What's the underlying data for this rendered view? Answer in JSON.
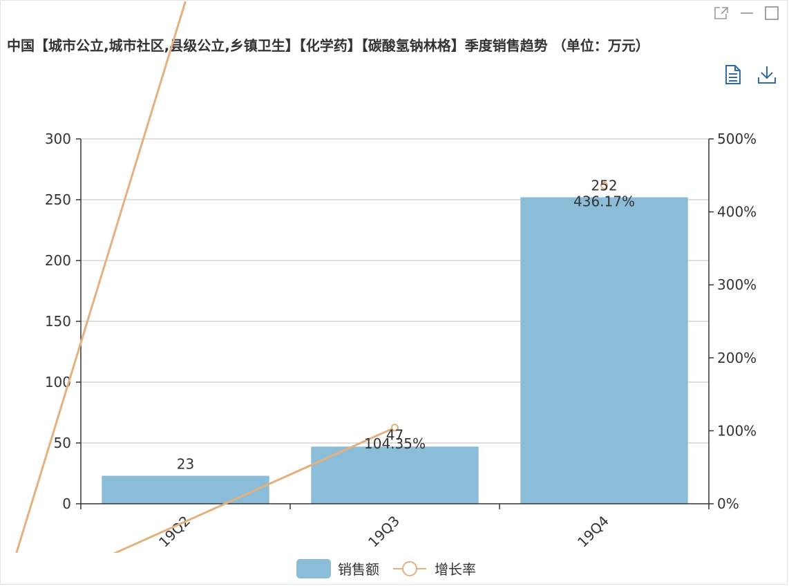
{
  "title": "中国【城市公立,城市社区,县级公立,乡镇卫生】【化学药】【碳酸氢钠林格】季度销售趋势 （单位：万元）",
  "window_controls": [
    "external-link-icon",
    "minimize-icon",
    "maximize-icon"
  ],
  "toolbox": [
    "data-view-icon",
    "download-icon"
  ],
  "colors": {
    "bar": "#8bbdd9",
    "line": "#e3b07e",
    "grid": "#cccccc",
    "axis": "#333333"
  },
  "legend": {
    "bar_label": "销售额",
    "line_label": "增长率"
  },
  "chart_data": {
    "type": "bar",
    "categories": [
      "19Q2",
      "19Q3",
      "19Q4"
    ],
    "series": [
      {
        "name": "销售额",
        "type": "bar",
        "axis": "left",
        "values": [
          23,
          47,
          252
        ],
        "labels": [
          "23",
          "47",
          "252"
        ]
      },
      {
        "name": "增长率",
        "type": "line",
        "axis": "right",
        "values": [
          null,
          104.35,
          436.17
        ],
        "labels": [
          "",
          "104.35%",
          "436.17%"
        ]
      }
    ],
    "y_left": {
      "min": 0,
      "max": 300,
      "ticks": [
        "0",
        "50",
        "100",
        "150",
        "200",
        "250",
        "300"
      ]
    },
    "y_right": {
      "min": 0,
      "max": 500,
      "ticks": [
        "0%",
        "100%",
        "200%",
        "300%",
        "400%",
        "500%"
      ]
    },
    "grid": true,
    "legend_position": "bottom-center"
  }
}
